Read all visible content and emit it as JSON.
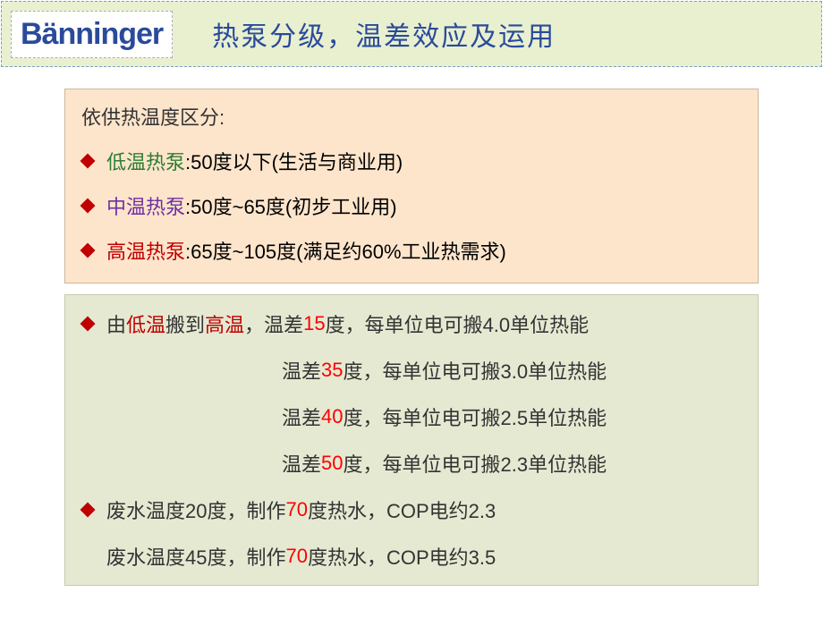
{
  "colors": {
    "header_bg": "#e8f0d0",
    "header_border": "#7a9ed0",
    "logo_text": "#2a4a9a",
    "title_text": "#2a4a9a",
    "box1_bg": "#fde5cc",
    "box1_border": "#c9b89a",
    "box2_bg": "#e5e9d2",
    "box2_border": "#c9c9b0",
    "bullet_red": "#c00000",
    "text_black": "#333333",
    "text_green": "#2e7d32",
    "text_purple": "#7030a0",
    "text_darkred": "#c00000",
    "text_red": "#ff0000"
  },
  "logo": "Bänninger",
  "title": "热泵分级，温差效应及运用",
  "box1": {
    "header": "依供热温度区分:",
    "items": [
      {
        "label": "低温热泵",
        "label_color": "#2e7d32",
        "rest": ":50度以下(生活与商业用)"
      },
      {
        "label": "中温热泵",
        "label_color": "#7030a0",
        "rest": ":50度~65度(初步工业用)"
      },
      {
        "label": "高温热泵",
        "label_color": "#c00000",
        "rest": ":65度~105度(满足约60%工业热需求)"
      }
    ]
  },
  "box2": {
    "line1_pre": "由",
    "line1_low": "低温",
    "line1_mid": "搬到",
    "line1_high": "高温",
    "line1_post1": "，温差",
    "td1": "15",
    "line1_post2": "度，每单位电可搬4.0单位热能",
    "line2_pre": "温差",
    "td2": "35",
    "line2_post": "度，每单位电可搬3.0单位热能",
    "line3_pre": "温差",
    "td3": "40",
    "line3_post": "度，每单位电可搬2.5单位热能",
    "line4_pre": "温差",
    "td4": "50",
    "line4_post": "度，每单位电可搬2.3单位热能",
    "line5_pre": "废水温度20度，制作",
    "t70a": "70",
    "line5_post": "度热水，COP电约2.3",
    "line6_pre": "废水温度45度，制作",
    "t70b": "70",
    "line6_post": "度热水，COP电约3.5"
  },
  "fonts": {
    "title_size": 30,
    "body_size": 22,
    "logo_size": 34
  }
}
